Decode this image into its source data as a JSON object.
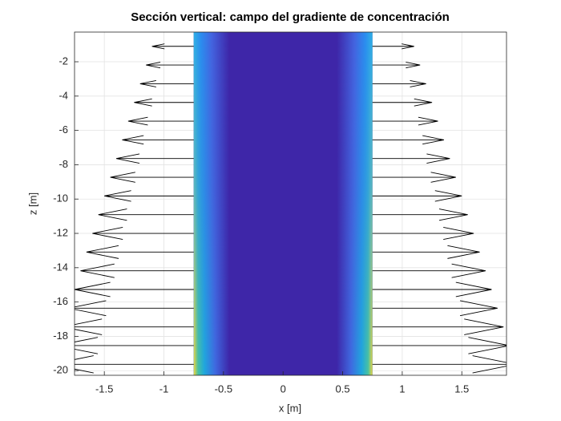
{
  "chart_data": {
    "type": "quiver",
    "title": "Sección vertical: campo del gradiente de concentración",
    "xlabel": "x [m]",
    "ylabel": "z [m]",
    "xlim": [
      -1.75,
      1.875
    ],
    "ylim": [
      -20.27,
      -0.27
    ],
    "xticks": [
      -1.5,
      -1,
      -0.5,
      0,
      0.5,
      1,
      1.5
    ],
    "yticks": [
      -20,
      -18,
      -16,
      -14,
      -12,
      -10,
      -8,
      -6,
      -4,
      -2
    ],
    "grid": true,
    "band_x": [
      -0.75,
      0.75
    ],
    "band_color": "#3e26a8",
    "arrow_color": "#000000",
    "z": [
      -1.1,
      -2.19,
      -3.28,
      -4.37,
      -5.46,
      -6.55,
      -7.64,
      -8.73,
      -9.82,
      -10.91,
      -12.0,
      -13.09,
      -14.18,
      -15.27,
      -16.36,
      -17.45,
      -18.54,
      -19.63
    ],
    "u": [
      0.35,
      0.4,
      0.45,
      0.5,
      0.55,
      0.6,
      0.65,
      0.7,
      0.75,
      0.8,
      0.85,
      0.9,
      0.95,
      1.0,
      1.05,
      1.1,
      1.15,
      1.2
    ]
  }
}
